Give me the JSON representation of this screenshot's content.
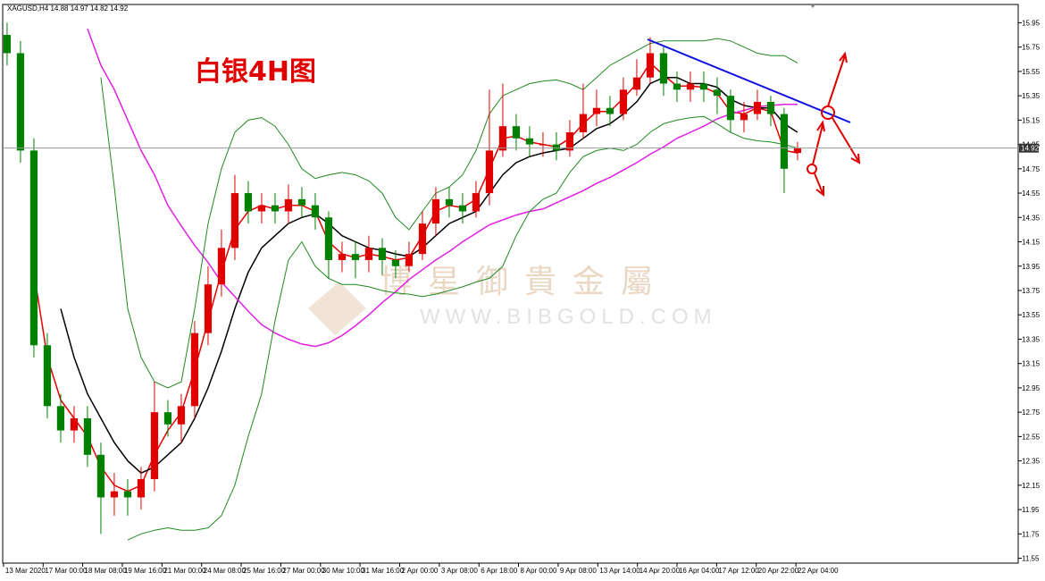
{
  "header": "XAGUSD,H4 14.88 14.97 14.82 14.92",
  "chart_data": {
    "type": "candlestick",
    "title": "白银4H图",
    "watermark": "博星御貴金屬",
    "watermark_url": "WWW.BIBGOLD.COM",
    "up_color": "#e00000",
    "down_color": "#008000",
    "open": [
      15.85,
      15.7,
      14.9,
      13.3,
      12.8,
      12.6,
      12.7,
      12.4,
      12.05,
      12.1,
      12.05,
      12.2,
      12.75,
      12.65,
      12.8,
      13.4,
      13.8,
      14.1,
      14.55,
      14.4,
      14.45,
      14.4,
      14.5,
      14.45,
      14.35,
      14.0,
      14.05,
      14.0,
      14.1,
      14.0,
      13.95,
      14.05,
      14.3,
      14.5,
      14.45,
      14.4,
      14.55,
      14.9,
      15.1,
      15.0,
      14.95,
      14.95,
      14.9,
      15.05,
      15.2,
      15.25,
      15.2,
      15.4,
      15.5,
      15.7,
      15.45,
      15.4,
      15.45,
      15.4,
      15.35,
      15.15,
      15.2,
      15.3,
      15.2,
      14.88
    ],
    "high": [
      15.95,
      15.8,
      15.0,
      13.4,
      12.9,
      12.8,
      12.8,
      12.5,
      12.25,
      12.2,
      12.3,
      13.0,
      12.85,
      12.9,
      13.5,
      13.95,
      14.25,
      14.7,
      14.65,
      14.55,
      14.55,
      14.62,
      14.6,
      14.55,
      14.4,
      14.15,
      14.15,
      14.2,
      14.18,
      14.08,
      14.15,
      14.4,
      14.6,
      14.6,
      14.55,
      14.65,
      15.4,
      15.45,
      15.2,
      15.1,
      15.05,
      15.05,
      15.15,
      15.45,
      15.4,
      15.35,
      15.5,
      15.65,
      15.83,
      15.75,
      15.55,
      15.55,
      15.55,
      15.5,
      15.4,
      15.3,
      15.4,
      15.35,
      15.25,
      14.97
    ],
    "low": [
      15.6,
      14.8,
      13.2,
      12.7,
      12.5,
      12.5,
      12.3,
      11.75,
      11.9,
      11.9,
      11.95,
      12.1,
      12.55,
      12.5,
      12.7,
      13.3,
      13.7,
      14.0,
      14.3,
      14.3,
      14.3,
      14.3,
      14.35,
      14.25,
      13.85,
      13.9,
      13.85,
      13.9,
      13.88,
      13.85,
      13.9,
      14.0,
      14.2,
      14.35,
      14.3,
      14.35,
      14.45,
      14.85,
      14.9,
      14.85,
      14.85,
      14.82,
      14.85,
      15.0,
      15.1,
      15.1,
      15.15,
      15.35,
      15.45,
      15.35,
      15.3,
      15.3,
      15.3,
      15.2,
      15.05,
      15.05,
      15.15,
      15.1,
      14.55,
      14.82
    ],
    "close": [
      15.7,
      14.9,
      13.3,
      12.8,
      12.6,
      12.7,
      12.4,
      12.05,
      12.1,
      12.05,
      12.2,
      12.75,
      12.65,
      12.8,
      13.4,
      13.8,
      14.1,
      14.55,
      14.4,
      14.45,
      14.4,
      14.5,
      14.45,
      14.35,
      14.0,
      14.05,
      14.0,
      14.1,
      14.0,
      13.95,
      14.05,
      14.3,
      14.5,
      14.45,
      14.4,
      14.55,
      14.9,
      15.1,
      15.0,
      14.95,
      14.95,
      14.9,
      15.05,
      15.2,
      15.25,
      15.2,
      15.4,
      15.5,
      15.7,
      15.45,
      15.4,
      15.45,
      15.4,
      15.35,
      15.15,
      15.2,
      15.3,
      15.2,
      14.75,
      14.92
    ],
    "overlays": [
      {
        "color": "#e00000",
        "values": [
          null,
          null,
          13.9,
          13.2,
          12.85,
          12.7,
          12.55,
          12.3,
          12.15,
          12.1,
          12.15,
          12.4,
          12.6,
          12.75,
          13.1,
          13.5,
          13.9,
          14.25,
          14.4,
          14.45,
          14.42,
          14.45,
          14.45,
          14.4,
          14.15,
          14.05,
          14.02,
          14.05,
          14.03,
          14.0,
          14.02,
          14.2,
          14.4,
          14.45,
          14.43,
          14.5,
          14.75,
          15.0,
          15.02,
          14.97,
          14.95,
          14.93,
          15.0,
          15.12,
          15.22,
          15.22,
          15.33,
          15.45,
          15.62,
          15.52,
          15.43,
          15.43,
          15.42,
          15.37,
          15.22,
          15.2,
          15.25,
          15.22,
          14.9,
          14.88
        ]
      },
      {
        "color": "#000000",
        "values": [
          null,
          null,
          null,
          null,
          13.6,
          13.2,
          12.9,
          12.7,
          12.5,
          12.35,
          12.25,
          12.3,
          12.4,
          12.5,
          12.7,
          12.95,
          13.25,
          13.6,
          13.9,
          14.1,
          14.2,
          14.3,
          14.35,
          14.38,
          14.3,
          14.2,
          14.15,
          14.1,
          14.08,
          14.05,
          14.03,
          14.1,
          14.2,
          14.3,
          14.35,
          14.4,
          14.55,
          14.7,
          14.8,
          14.85,
          14.88,
          14.9,
          14.92,
          15.0,
          15.08,
          15.12,
          15.2,
          15.3,
          15.45,
          15.5,
          15.5,
          15.45,
          15.45,
          15.42,
          15.32,
          15.27,
          15.25,
          15.25,
          15.12,
          15.05
        ]
      },
      {
        "color": "#e020e0",
        "values": [
          null,
          null,
          null,
          null,
          null,
          null,
          15.9,
          15.6,
          15.4,
          15.15,
          14.9,
          14.7,
          14.45,
          14.28,
          14.12,
          13.98,
          13.82,
          13.7,
          13.58,
          13.47,
          13.4,
          13.35,
          13.31,
          13.29,
          13.32,
          13.38,
          13.46,
          13.55,
          13.65,
          13.74,
          13.84,
          13.92,
          14.0,
          14.07,
          14.15,
          14.22,
          14.29,
          14.33,
          14.37,
          14.4,
          14.42,
          14.47,
          14.52,
          14.57,
          14.63,
          14.68,
          14.74,
          14.8,
          14.87,
          14.93,
          15.0,
          15.05,
          15.1,
          15.16,
          15.2,
          15.23,
          15.26,
          15.27,
          15.28,
          15.28
        ]
      },
      {
        "color": "#1f8a1f",
        "values": [
          null,
          null,
          null,
          null,
          null,
          null,
          null,
          15.5,
          14.6,
          13.6,
          13.2,
          13.0,
          12.95,
          13.0,
          13.6,
          14.3,
          14.75,
          15.05,
          15.15,
          15.17,
          15.1,
          14.95,
          14.75,
          14.67,
          14.7,
          14.72,
          14.7,
          14.65,
          14.55,
          14.35,
          14.25,
          14.4,
          14.55,
          14.6,
          14.7,
          14.9,
          15.2,
          15.35,
          15.4,
          15.45,
          15.47,
          15.48,
          15.45,
          15.4,
          15.5,
          15.6,
          15.66,
          15.72,
          15.78,
          15.8,
          15.8,
          15.8,
          15.8,
          15.82,
          15.8,
          15.75,
          15.7,
          15.68,
          15.68,
          15.62
        ]
      },
      {
        "color": "#1f8a1f",
        "values": [
          null,
          null,
          null,
          null,
          null,
          null,
          null,
          null,
          null,
          11.7,
          11.75,
          11.78,
          11.8,
          11.78,
          11.78,
          11.8,
          11.9,
          12.15,
          12.55,
          12.9,
          13.5,
          14.0,
          14.15,
          13.95,
          13.85,
          13.8,
          13.8,
          13.78,
          13.75,
          13.73,
          13.72,
          13.7,
          13.72,
          13.75,
          13.78,
          13.82,
          13.85,
          13.95,
          14.2,
          14.4,
          14.5,
          14.55,
          14.72,
          14.85,
          14.9,
          14.92,
          14.9,
          14.95,
          15.05,
          15.12,
          15.15,
          15.17,
          15.18,
          15.12,
          15.05,
          15.0,
          14.98,
          14.97,
          14.95,
          14.92
        ]
      }
    ],
    "current_price": 14.92,
    "ylim": [
      11.51,
      16.1
    ],
    "yticks": [
      15.95,
      15.75,
      15.55,
      15.35,
      15.15,
      14.95,
      14.75,
      14.55,
      14.35,
      14.15,
      13.95,
      13.75,
      13.55,
      13.35,
      13.15,
      12.95,
      12.75,
      12.55,
      12.35,
      12.15,
      11.95,
      11.75,
      11.55
    ],
    "xlim": [
      -0.33,
      75.47
    ],
    "xticks": [
      {
        "value": -0.27,
        "label": "13 Mar 2020"
      },
      {
        "value": 2.69,
        "label": "17 Mar 00:00"
      },
      {
        "value": 5.64,
        "label": "18 Mar 08:00"
      },
      {
        "value": 8.6,
        "label": "19 Mar 16:00"
      },
      {
        "value": 11.56,
        "label": "21 Mar 00:00"
      },
      {
        "value": 14.52,
        "label": "24 Mar 08:00"
      },
      {
        "value": 17.47,
        "label": "25 Mar 16:00"
      },
      {
        "value": 20.43,
        "label": "27 Mar 00:00"
      },
      {
        "value": 23.39,
        "label": "30 Mar 10:00"
      },
      {
        "value": 26.34,
        "label": "31 Mar 16:00"
      },
      {
        "value": 29.3,
        "label": "2 Apr 00:00"
      },
      {
        "value": 32.26,
        "label": "3 Apr 08:00"
      },
      {
        "value": 35.22,
        "label": "6 Apr 18:00"
      },
      {
        "value": 38.17,
        "label": "8 Apr 00:00"
      },
      {
        "value": 41.13,
        "label": "9 Apr 08:00"
      },
      {
        "value": 44.09,
        "label": "13 Apr 14:00"
      },
      {
        "value": 47.05,
        "label": "14 Apr 20:00"
      },
      {
        "value": 50.0,
        "label": "16 Apr 04:00"
      },
      {
        "value": 52.96,
        "label": "17 Apr 12:00"
      },
      {
        "value": 55.92,
        "label": "20 Apr 22:00"
      },
      {
        "value": 58.88,
        "label": "22 Apr 04:00"
      }
    ]
  }
}
